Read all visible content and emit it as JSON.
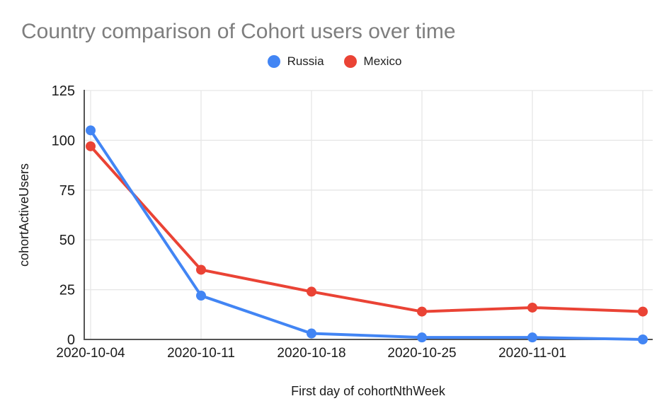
{
  "header": {
    "title": "Country comparison of Cohort users over time"
  },
  "legend": {
    "items": [
      {
        "label": "Russia",
        "color": "#4285F4"
      },
      {
        "label": "Mexico",
        "color": "#EA4335"
      }
    ]
  },
  "chart_data": {
    "type": "line",
    "title": "Country comparison of Cohort users over time",
    "xlabel": "First day of cohortNthWeek",
    "ylabel": "cohortActiveUsers",
    "categories": [
      "2020-10-04",
      "2020-10-11",
      "2020-10-18",
      "2020-10-25",
      "2020-11-01",
      ""
    ],
    "series": [
      {
        "name": "Russia",
        "color": "#4285F4",
        "values": [
          105,
          22,
          3,
          1,
          1,
          0
        ]
      },
      {
        "name": "Mexico",
        "color": "#EA4335",
        "values": [
          97,
          35,
          24,
          14,
          16,
          14
        ]
      }
    ],
    "yticks": [
      0,
      25,
      50,
      75,
      100,
      125
    ],
    "ylim": [
      0,
      125
    ],
    "grid": true,
    "legend_position": "top",
    "colors": {
      "gridline": "#e6e6e6",
      "axis_line": "#555555",
      "tick_label": "#1a1a1a",
      "title_gray": "#7e7e7e"
    }
  }
}
